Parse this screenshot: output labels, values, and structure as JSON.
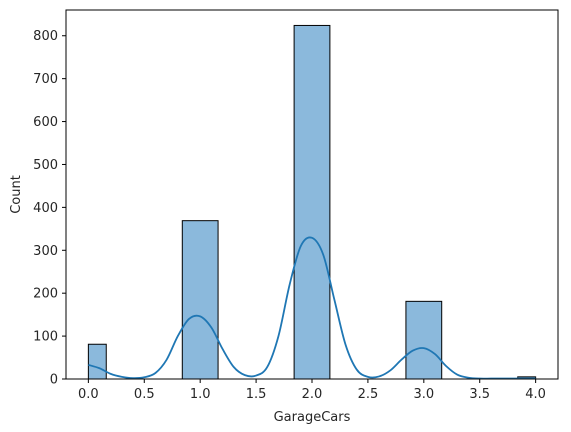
{
  "chart_data": {
    "type": "bar",
    "subtype": "histogram-with-kde",
    "title": "",
    "xlabel": "GarageCars",
    "ylabel": "Count",
    "xlim": [
      -0.2,
      4.2
    ],
    "ylim": [
      0,
      860
    ],
    "xticks": [
      0.0,
      0.5,
      1.0,
      1.5,
      2.0,
      2.5,
      3.0,
      3.5,
      4.0
    ],
    "xtick_labels": [
      "0.0",
      "0.5",
      "1.0",
      "1.5",
      "2.0",
      "2.5",
      "3.0",
      "3.5",
      "4.0"
    ],
    "yticks": [
      0,
      100,
      200,
      300,
      400,
      500,
      600,
      700,
      800
    ],
    "ytick_labels": [
      "0",
      "100",
      "200",
      "300",
      "400",
      "500",
      "600",
      "700",
      "800"
    ],
    "grid": false,
    "bar_color": "#8bb9dc",
    "bar_edge_color": "#000000",
    "kde_color": "#1f77b4",
    "bars": [
      {
        "x0": 0.0,
        "x1": 0.16,
        "value": 81
      },
      {
        "x0": 0.84,
        "x1": 1.0,
        "value": 0
      },
      {
        "x0": 0.84,
        "x1": 1.16,
        "value": 369
      },
      {
        "x0": 1.84,
        "x1": 2.16,
        "value": 824
      },
      {
        "x0": 2.84,
        "x1": 3.16,
        "value": 181
      },
      {
        "x0": 3.84,
        "x1": 4.0,
        "value": 5
      }
    ],
    "kde": {
      "x": [
        0.0,
        0.1,
        0.2,
        0.3,
        0.4,
        0.5,
        0.6,
        0.7,
        0.8,
        0.9,
        1.0,
        1.1,
        1.2,
        1.3,
        1.4,
        1.5,
        1.6,
        1.7,
        1.8,
        1.9,
        2.0,
        2.1,
        2.2,
        2.3,
        2.4,
        2.5,
        2.6,
        2.7,
        2.8,
        2.9,
        3.0,
        3.1,
        3.2,
        3.3,
        3.4,
        3.5,
        3.6,
        3.7,
        3.8,
        3.9,
        4.0
      ],
      "y": [
        33,
        25,
        12,
        5,
        2,
        4,
        14,
        45,
        100,
        140,
        146,
        120,
        70,
        28,
        9,
        8,
        28,
        100,
        220,
        310,
        329,
        290,
        185,
        80,
        22,
        5,
        6,
        20,
        45,
        66,
        72,
        58,
        30,
        10,
        3,
        1,
        1,
        1,
        1,
        1,
        1
      ]
    }
  }
}
